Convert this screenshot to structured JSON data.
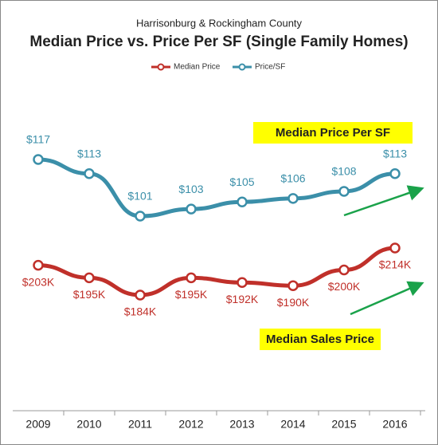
{
  "chart_data": {
    "type": "line",
    "subtitle": "Harrisonburg & Rockingham County",
    "title": "Median Price vs. Price Per SF (Single Family Homes)",
    "categories": [
      "2009",
      "2010",
      "2011",
      "2012",
      "2013",
      "2014",
      "2015",
      "2016"
    ],
    "series": [
      {
        "name": "Median Price",
        "color": "#c0302a",
        "values": [
          203,
          195,
          184,
          195,
          192,
          190,
          200,
          214
        ],
        "value_labels": [
          "$203K",
          "$195K",
          "$184K",
          "$195K",
          "$192K",
          "$190K",
          "$200K",
          "$214K"
        ]
      },
      {
        "name": "Price/SF",
        "color": "#3b8fa9",
        "values": [
          117,
          113,
          101,
          103,
          105,
          106,
          108,
          113
        ],
        "value_labels": [
          "$117",
          "$113",
          "$101",
          "$103",
          "$105",
          "$106",
          "$108",
          "$113"
        ]
      }
    ],
    "annotations": [
      "Median Price Per SF",
      "Median Sales Price"
    ],
    "legend": "top"
  }
}
